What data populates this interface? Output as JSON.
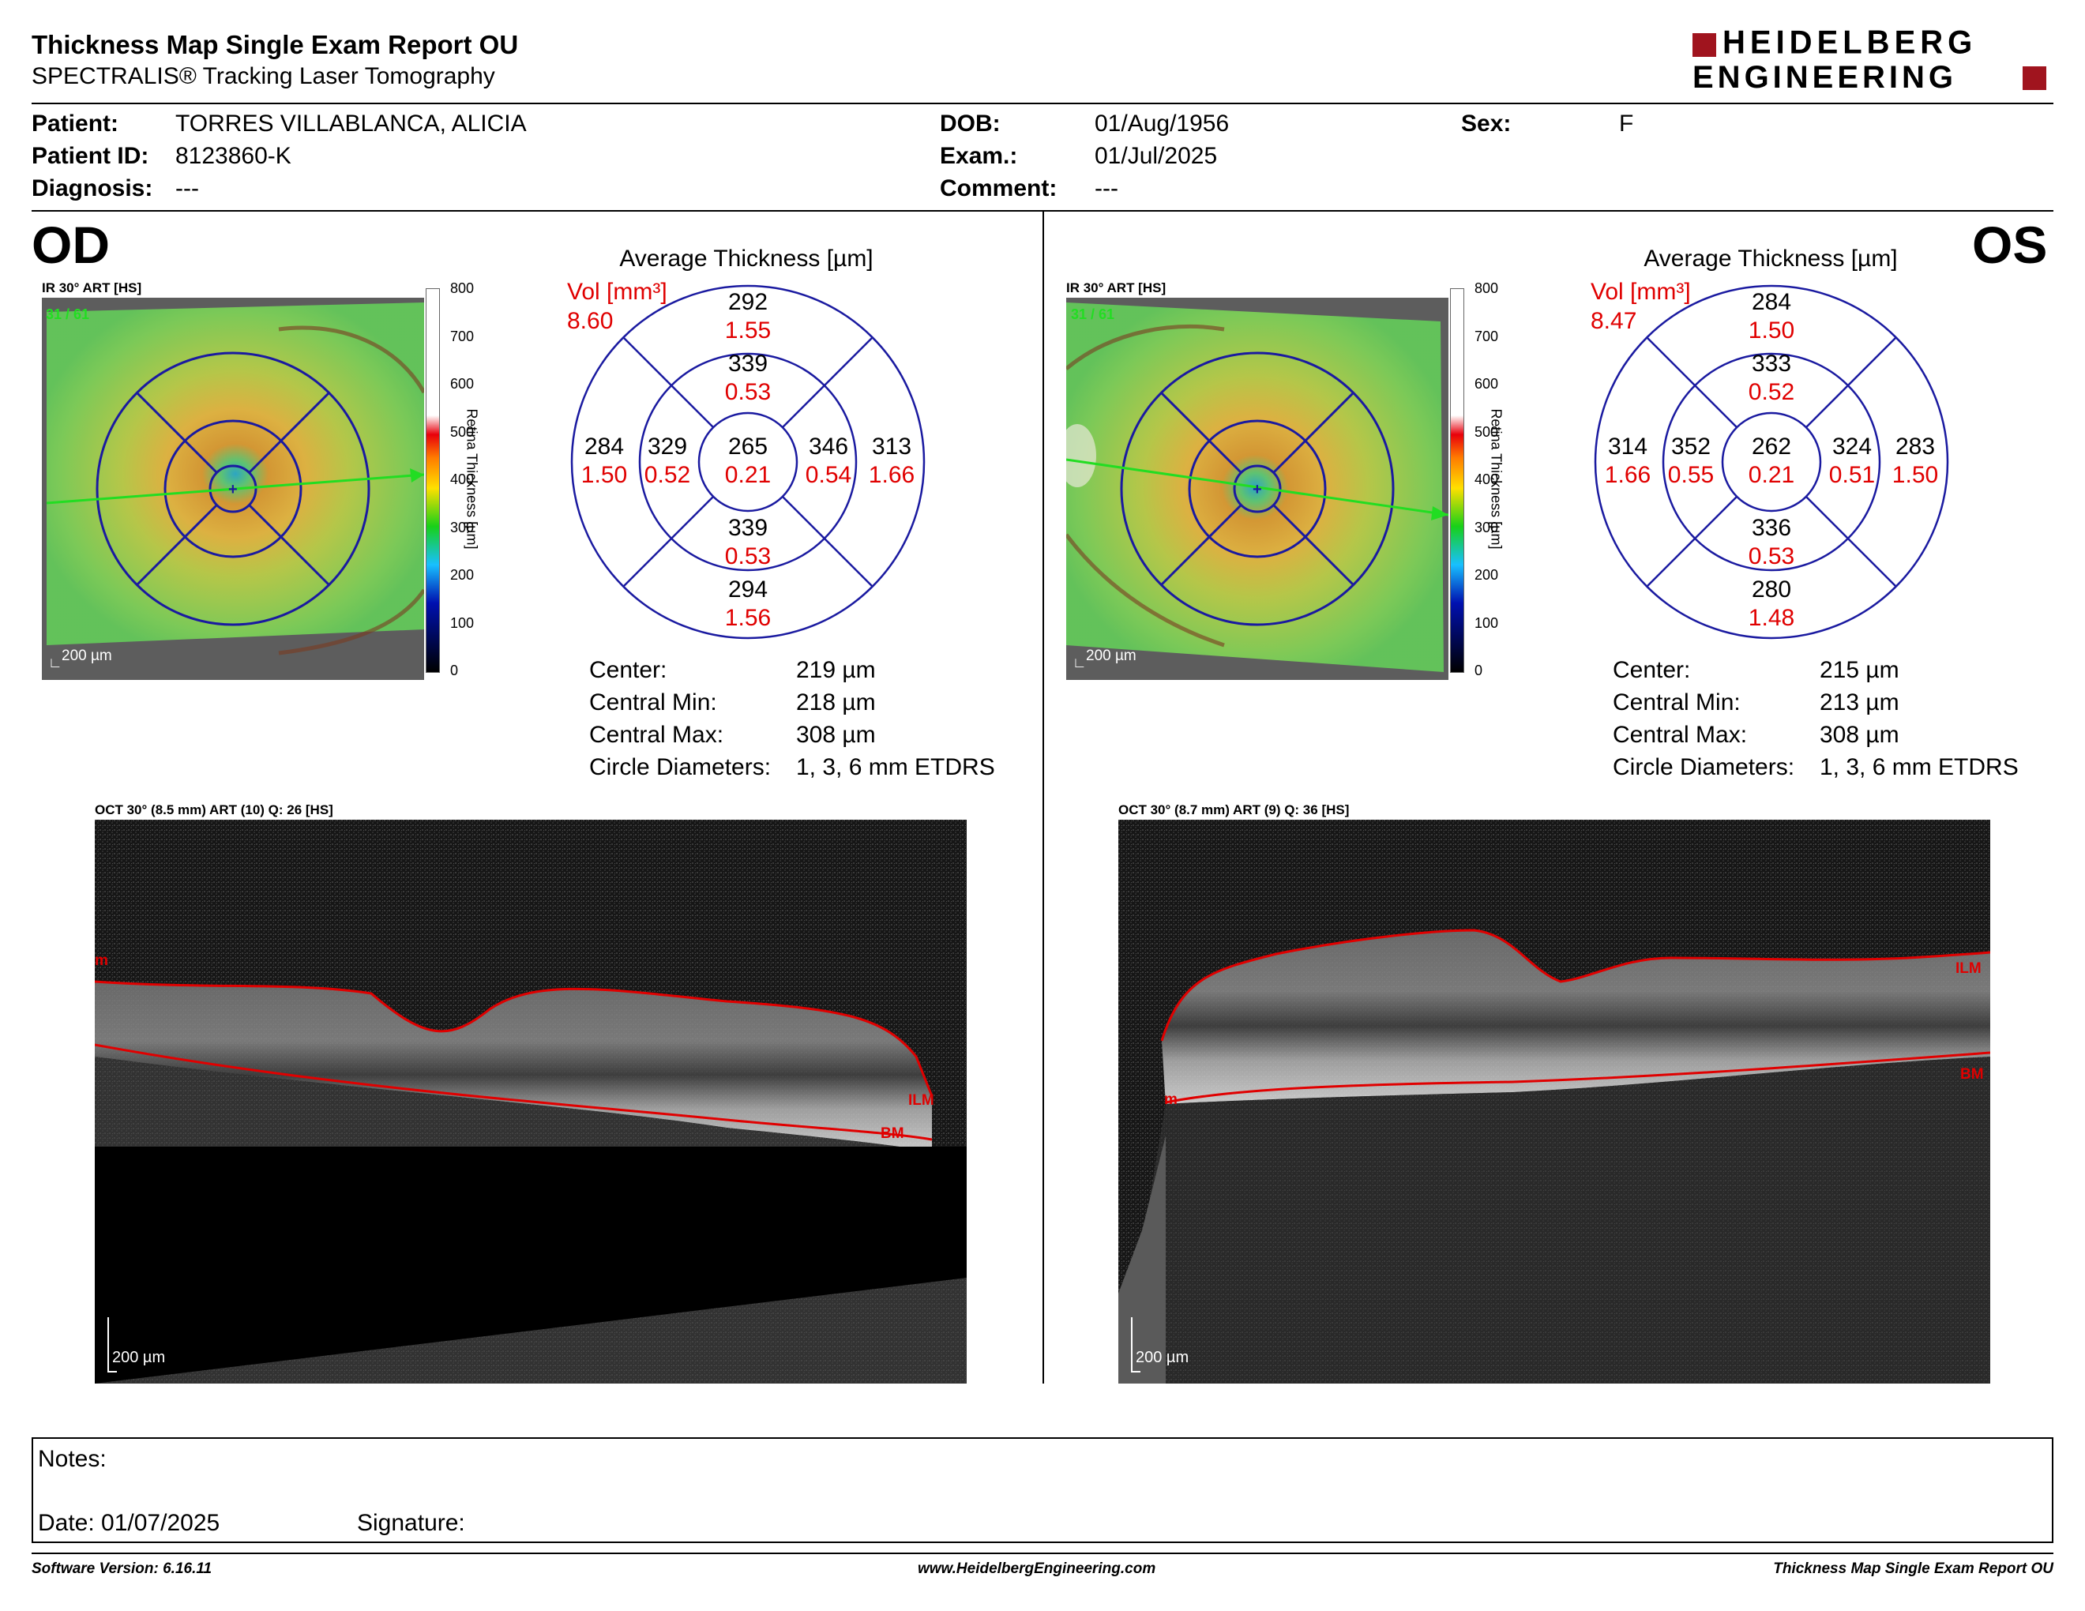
{
  "report": {
    "title": "Thickness Map Single Exam Report OU",
    "subtitle": "SPECTRALIS® Tracking Laser Tomography",
    "logo_line1": "HEIDELBERG",
    "logo_line2": "ENGINEERING"
  },
  "patient": {
    "patient_label": "Patient:",
    "patient_value": "TORRES VILLABLANCA, ALICIA",
    "id_label": "Patient ID:",
    "id_value": "8123860-K",
    "diagnosis_label": "Diagnosis:",
    "diagnosis_value": "---",
    "dob_label": "DOB:",
    "dob_value": "01/Aug/1956",
    "exam_label": "Exam.:",
    "exam_value": "01/Jul/2025",
    "comment_label": "Comment:",
    "comment_value": "---",
    "sex_label": "Sex:",
    "sex_value": "F"
  },
  "colorbar": {
    "title": "Retina Thickness [µm]",
    "ticks": [
      "800",
      "700",
      "600",
      "500",
      "400",
      "300",
      "200",
      "100",
      "0"
    ]
  },
  "od": {
    "eye": "OD",
    "ir_label": "IR 30° ART [HS]",
    "ir_counter": "31 / 61",
    "scale_label": "200 µm",
    "avg_title": "Average Thickness [µm]",
    "vol_label": "Vol [mm³]",
    "vol_value": "8.60",
    "sectors": {
      "outer_top": {
        "t": "292",
        "v": "1.55"
      },
      "inner_top": {
        "t": "339",
        "v": "0.53"
      },
      "outer_left": {
        "t": "284",
        "v": "1.50"
      },
      "inner_left": {
        "t": "329",
        "v": "0.52"
      },
      "center": {
        "t": "265",
        "v": "0.21"
      },
      "inner_right": {
        "t": "346",
        "v": "0.54"
      },
      "outer_right": {
        "t": "313",
        "v": "1.66"
      },
      "inner_bottom": {
        "t": "339",
        "v": "0.53"
      },
      "outer_bottom": {
        "t": "294",
        "v": "1.56"
      }
    },
    "stats": [
      {
        "label": "Center:",
        "value": "219 µm"
      },
      {
        "label": "Central Min:",
        "value": "218 µm"
      },
      {
        "label": "Central Max:",
        "value": "308 µm"
      },
      {
        "label": "Circle Diameters:",
        "value": "1, 3, 6 mm ETDRS"
      }
    ],
    "oct_label": "OCT 30° (8.5 mm) ART (10) Q: 26 [HS]",
    "oct_scale": "200 µm",
    "oct_ilm": "ILM",
    "oct_bm": "BM",
    "oct_ilm_edge": "m"
  },
  "os": {
    "eye": "OS",
    "ir_label": "IR 30° ART [HS]",
    "ir_counter": "31 / 61",
    "scale_label": "200 µm",
    "avg_title": "Average Thickness [µm]",
    "vol_label": "Vol [mm³]",
    "vol_value": "8.47",
    "sectors": {
      "outer_top": {
        "t": "284",
        "v": "1.50"
      },
      "inner_top": {
        "t": "333",
        "v": "0.52"
      },
      "outer_left": {
        "t": "314",
        "v": "1.66"
      },
      "inner_left": {
        "t": "352",
        "v": "0.55"
      },
      "center": {
        "t": "262",
        "v": "0.21"
      },
      "inner_right": {
        "t": "324",
        "v": "0.51"
      },
      "outer_right": {
        "t": "283",
        "v": "1.50"
      },
      "inner_bottom": {
        "t": "336",
        "v": "0.53"
      },
      "outer_bottom": {
        "t": "280",
        "v": "1.48"
      }
    },
    "stats": [
      {
        "label": "Center:",
        "value": "215 µm"
      },
      {
        "label": "Central Min:",
        "value": "213 µm"
      },
      {
        "label": "Central Max:",
        "value": "308 µm"
      },
      {
        "label": "Circle Diameters:",
        "value": "1, 3, 6 mm ETDRS"
      }
    ],
    "oct_label": "OCT 30° (8.7 mm) ART (9) Q: 36 [HS]",
    "oct_scale": "200 µm",
    "oct_ilm": "ILM",
    "oct_bm": "BM",
    "oct_ilm_edge": "m"
  },
  "notes": {
    "notes_label": "Notes:",
    "date_label": "Date: 01/07/2025",
    "signature_label": "Signature:"
  },
  "footer": {
    "left": "Software Version: 6.16.11",
    "center": "www.HeidelbergEngineering.com",
    "right": "Thickness Map Single Exam Report OU"
  },
  "colors": {
    "red": "#e00000",
    "navy": "#1a1aa0",
    "logo_red": "#a0141e"
  }
}
